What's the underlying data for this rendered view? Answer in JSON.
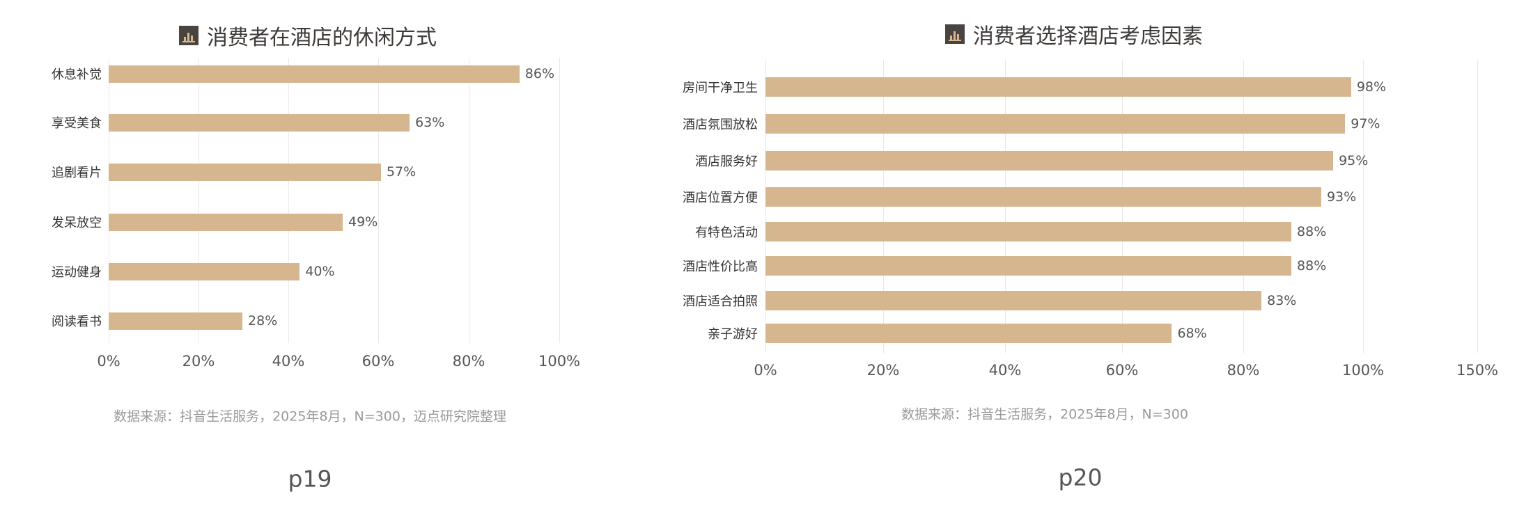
{
  "chart_data": [
    {
      "type": "bar",
      "orientation": "horizontal",
      "title": "消费者在酒店的休闲方式",
      "categories": [
        "休息补觉",
        "享受美食",
        "追剧看片",
        "发呆放空",
        "运动健身",
        "阅读看书"
      ],
      "values": [
        86,
        63,
        57,
        49,
        40,
        28
      ],
      "value_labels": [
        "86%",
        "63%",
        "57%",
        "49%",
        "40%",
        "28%"
      ],
      "xticks": [
        "0%",
        "20%",
        "40%",
        "60%",
        "80%",
        "100%"
      ],
      "xlim": [
        0,
        100
      ],
      "grid": true,
      "source": "数据来源：抖音生活服务，2025年8月，N=300，迈点研究院整理",
      "page": "p19"
    },
    {
      "type": "bar",
      "orientation": "horizontal",
      "title": "消费者选择酒店考虑因素",
      "categories": [
        "房间干净卫生",
        "酒店氛围放松",
        "酒店服务好",
        "酒店位置方便",
        "有特色活动",
        "酒店性价比高",
        "酒店适合拍照",
        "亲子游好"
      ],
      "values": [
        98,
        97,
        95,
        93,
        88,
        88,
        83,
        68
      ],
      "value_labels": [
        "98%",
        "97%",
        "95%",
        "93%",
        "88%",
        "88%",
        "83%",
        "68%"
      ],
      "xticks": [
        "0%",
        "20%",
        "40%",
        "60%",
        "80%",
        "100%",
        "150%"
      ],
      "xlim": [
        0,
        150
      ],
      "grid": true,
      "source": "数据来源：抖音生活服务，2025年8月，N=300",
      "page": "p20"
    }
  ],
  "colors": {
    "bar": "#d6b68e",
    "icon_bg": "#4a4440"
  }
}
